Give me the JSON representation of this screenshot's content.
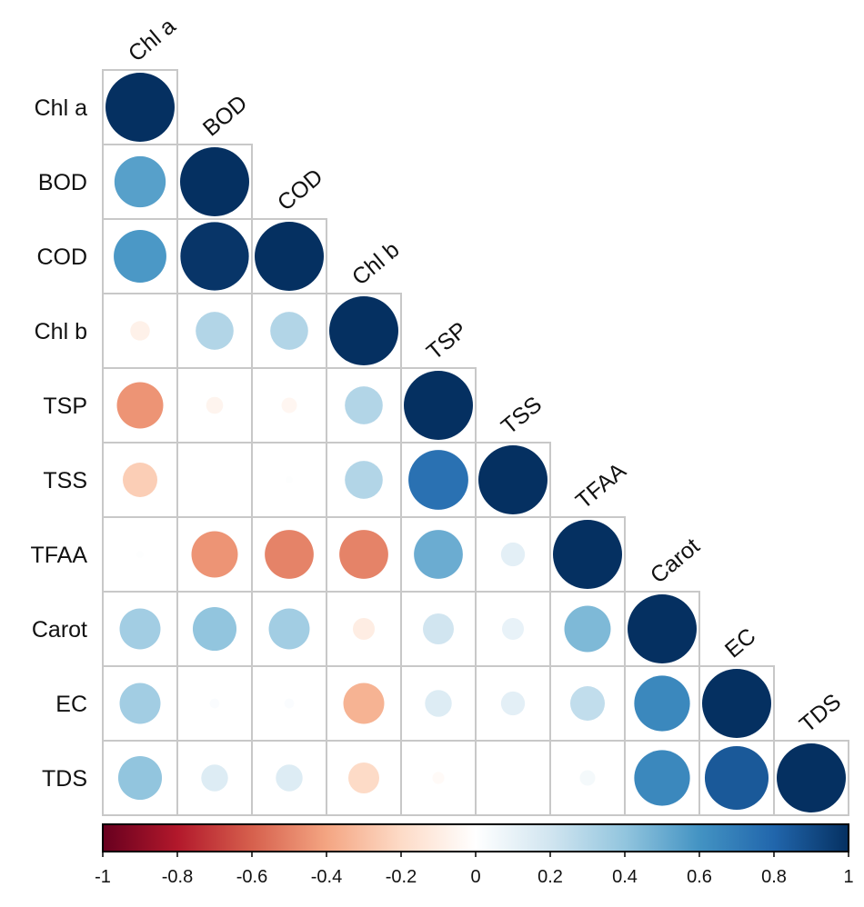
{
  "chart_data": {
    "type": "heatmap",
    "subtype": "correlation-circle-lower-triangle",
    "variables": [
      "Chl a",
      "BOD",
      "COD",
      "Chl b",
      "TSP",
      "TSS",
      "TFAA",
      "Carot",
      "EC",
      "TDS"
    ],
    "matrix": [
      [
        1
      ],
      [
        0.55,
        1
      ],
      [
        0.58,
        0.98,
        1
      ],
      [
        -0.08,
        0.3,
        0.3,
        1
      ],
      [
        -0.45,
        -0.06,
        -0.05,
        0.3,
        1
      ],
      [
        -0.25,
        0.0,
        0.01,
        0.3,
        0.75,
        1
      ],
      [
        0.01,
        -0.45,
        -0.5,
        -0.5,
        0.5,
        0.12,
        1
      ],
      [
        0.35,
        0.4,
        0.35,
        -0.1,
        0.2,
        0.1,
        0.45,
        1
      ],
      [
        0.35,
        0.02,
        0.02,
        -0.35,
        0.15,
        0.12,
        0.25,
        0.65,
        1
      ],
      [
        0.4,
        0.15,
        0.15,
        -0.2,
        -0.03,
        0.0,
        0.05,
        0.65,
        0.85,
        1
      ]
    ],
    "colorbar": {
      "range": [
        -1,
        1
      ],
      "ticks": [
        "-1",
        "-0.8",
        "-0.6",
        "-0.4",
        "-0.2",
        "0",
        "0.2",
        "0.4",
        "0.6",
        "0.8",
        "1"
      ],
      "palette": [
        "#67001F",
        "#B2182B",
        "#D6604D",
        "#F4A582",
        "#FDDBC7",
        "#FFFFFF",
        "#D1E5F0",
        "#92C5DE",
        "#4393C3",
        "#2166AC",
        "#053061"
      ]
    },
    "grid": true,
    "legend_position": "bottom"
  }
}
